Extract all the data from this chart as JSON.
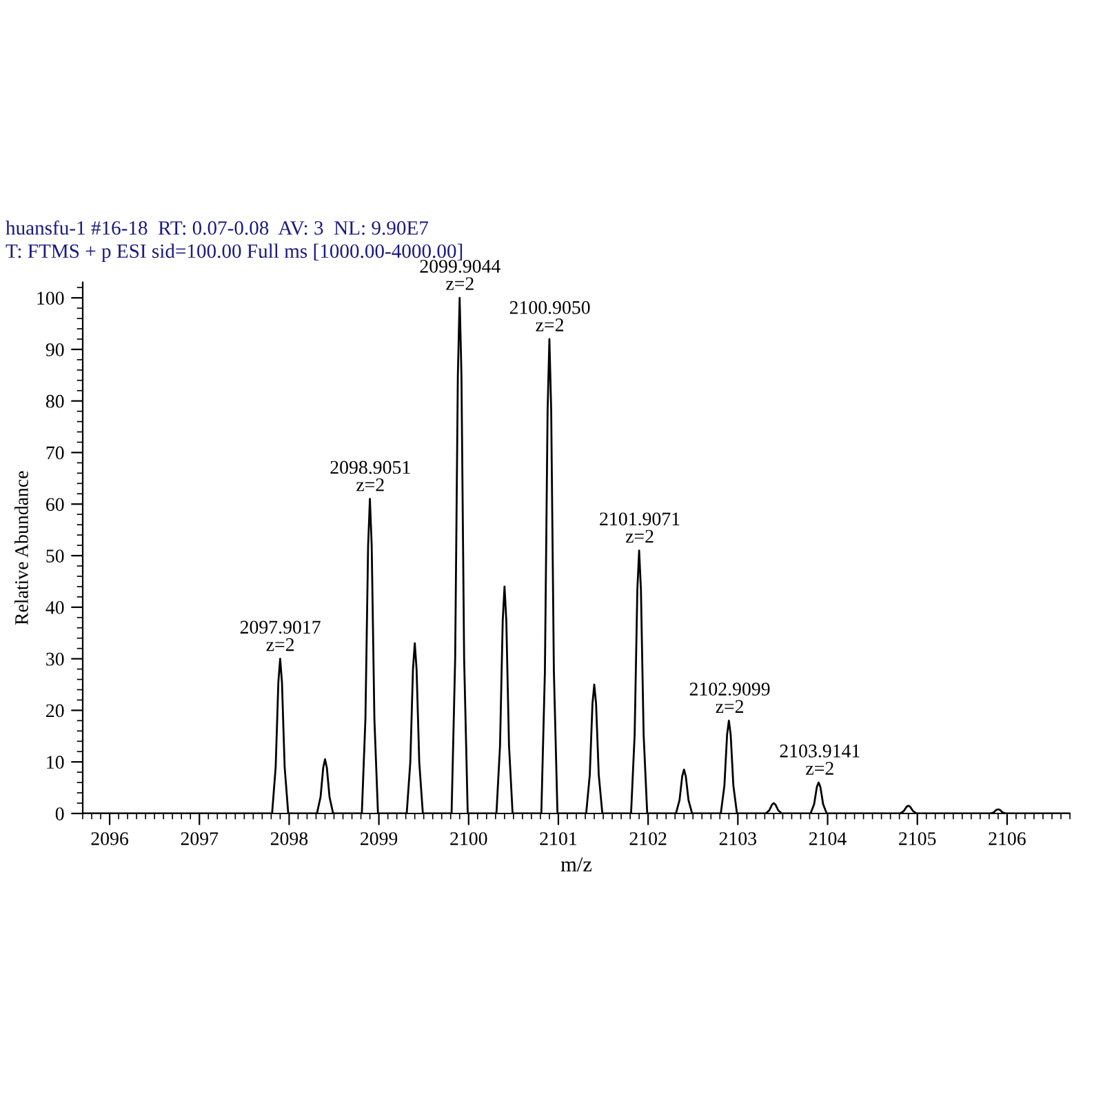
{
  "chart_data": {
    "type": "line",
    "xlabel": "m/z",
    "ylabel": "Relative Abundance",
    "xlim": [
      2095.7,
      2106.7
    ],
    "xticks": [
      2096,
      2097,
      2098,
      2099,
      2100,
      2101,
      2102,
      2103,
      2104,
      2105,
      2106
    ],
    "ylim": [
      0,
      103
    ],
    "yticks": [
      0,
      10,
      20,
      30,
      40,
      50,
      60,
      70,
      80,
      90,
      100
    ],
    "grid": false,
    "legend": false,
    "marker": "none",
    "line_style": "solid",
    "series": [
      {
        "color": "#000000",
        "x": [
          2095.7,
          2097.81,
          2097.85,
          2097.88,
          2097.9,
          2097.92,
          2097.95,
          2097.99,
          2098.31,
          2098.35,
          2098.38,
          2098.4,
          2098.42,
          2098.45,
          2098.49,
          2098.81,
          2098.85,
          2098.88,
          2098.9,
          2098.92,
          2098.95,
          2098.99,
          2099.31,
          2099.35,
          2099.38,
          2099.4,
          2099.42,
          2099.45,
          2099.49,
          2099.81,
          2099.85,
          2099.88,
          2099.9,
          2099.92,
          2099.95,
          2099.99,
          2100.31,
          2100.35,
          2100.38,
          2100.4,
          2100.42,
          2100.45,
          2100.49,
          2100.81,
          2100.85,
          2100.88,
          2100.9,
          2100.92,
          2100.95,
          2100.99,
          2101.31,
          2101.35,
          2101.38,
          2101.4,
          2101.42,
          2101.45,
          2101.49,
          2101.81,
          2101.85,
          2101.88,
          2101.9,
          2101.92,
          2101.95,
          2101.99,
          2102.31,
          2102.35,
          2102.38,
          2102.4,
          2102.42,
          2102.45,
          2102.49,
          2102.81,
          2102.85,
          2102.88,
          2102.9,
          2102.92,
          2102.95,
          2102.99,
          2103.31,
          2103.35,
          2103.38,
          2103.4,
          2103.42,
          2103.45,
          2103.49,
          2103.81,
          2103.85,
          2103.88,
          2103.9,
          2103.92,
          2103.95,
          2103.99,
          2104.81,
          2104.85,
          2104.88,
          2104.9,
          2104.92,
          2104.95,
          2104.99,
          2105.81,
          2105.85,
          2105.88,
          2105.9,
          2105.92,
          2105.95,
          2105.99,
          2106.7
        ],
        "values": [
          0,
          0,
          9,
          25.5,
          30,
          25.5,
          9,
          0,
          0,
          3.2,
          8.9,
          10.5,
          8.9,
          3.2,
          0,
          0,
          18.3,
          51.9,
          61,
          51.9,
          18.3,
          0,
          0,
          9.9,
          28,
          33,
          28,
          9.9,
          0,
          0,
          30,
          85,
          100,
          85,
          30,
          0,
          0,
          13.2,
          37.4,
          44,
          37.4,
          13.2,
          0,
          0,
          27.6,
          78.2,
          92,
          78.2,
          27.6,
          0,
          0,
          7.5,
          21.3,
          25,
          21.3,
          7.5,
          0,
          0,
          15.3,
          43.4,
          51,
          43.4,
          15.3,
          0,
          0,
          2.6,
          7.2,
          8.5,
          7.2,
          2.6,
          0,
          0,
          5.4,
          15.3,
          18,
          15.3,
          5.4,
          0,
          0,
          0.6,
          1.7,
          2,
          1.7,
          0.6,
          0,
          0,
          1.8,
          5.1,
          6,
          5.1,
          1.8,
          0,
          0,
          0.5,
          1.3,
          1.5,
          1.3,
          0.5,
          0,
          0,
          0.2,
          0.7,
          0.8,
          0.7,
          0.2,
          0,
          0
        ]
      }
    ],
    "annotations": [
      "huansfu-1 #16-18  RT: 0.07-0.08  AV: 3  NL: 9.90E7",
      "T: FTMS + p ESI sid=100.00 Full ms [1000.00-4000.00]",
      {
        "text": "2097.9017\nz=2",
        "x": 2097.9017,
        "y": 30
      },
      {
        "text": "2098.9051\nz=2",
        "x": 2098.9051,
        "y": 61
      },
      {
        "text": "2099.9044\nz=2",
        "x": 2099.9044,
        "y": 100
      },
      {
        "text": "2100.9050\nz=2",
        "x": 2100.905,
        "y": 92
      },
      {
        "text": "2101.9071\nz=2",
        "x": 2101.9071,
        "y": 51
      },
      {
        "text": "2102.9099\nz=2",
        "x": 2102.9099,
        "y": 18
      },
      {
        "text": "2103.9141\nz=2",
        "x": 2103.9141,
        "y": 6
      }
    ]
  }
}
